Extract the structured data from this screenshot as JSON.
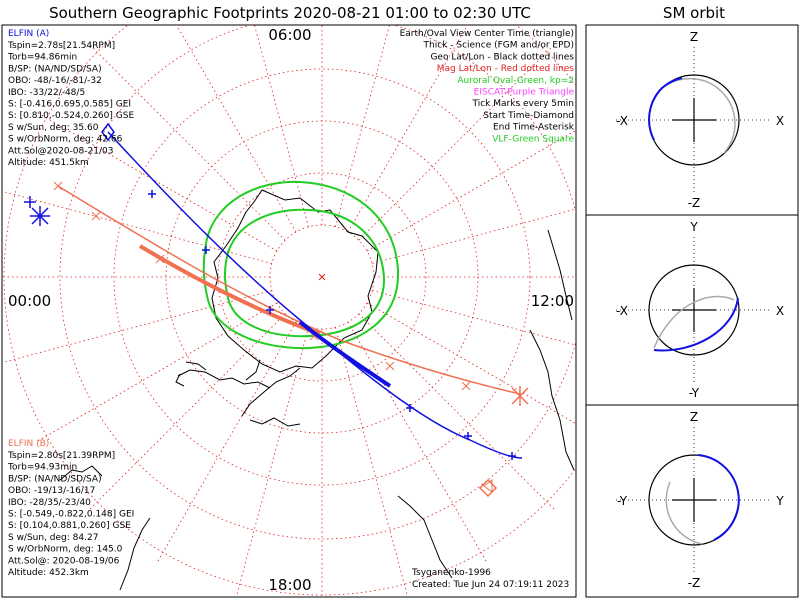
{
  "title": "Southern Geographic Footprints 2020-08-21 01:00 to 02:30 UTC",
  "sm_title": "SM orbit",
  "colors": {
    "elfin_a": "#1010e0",
    "elfin_b": "#f07050",
    "aurora": "#22cc22",
    "grid": "#e02020",
    "coast": "#000000",
    "eiscat": "#ff40ff",
    "vlf": "#22cc22"
  },
  "clock_labels": {
    "top": "06:00",
    "left": "00:00",
    "right": "12:00",
    "bottom": "18:00"
  },
  "elfin_a": {
    "name": "ELFIN (A)",
    "lines": [
      "Tspin=2.78s[21.54RPM]",
      "Torb=94.86min",
      "B/SP: (NA/ND/SD/SA)",
      "OBO: -48/-16/-81/-32",
      "IBO: -33/22/-48/5",
      "S: [-0.416,0.695,0.585] GEI",
      "S: [0.810,-0.524,0.260] GSE",
      "S w/Sun, deg: 35.60",
      "S w/OrbNorm, deg: 42.66",
      "Att.Sol@2020-08-21/03",
      "Altitude: 451.5km"
    ]
  },
  "elfin_b": {
    "name": "ELFIN (B)",
    "lines": [
      "Tspin=2.80s[21.39RPM]",
      "Torb=94.93min",
      "B/SP: (NA/ND/SD/SA)",
      "OBO: -19/13/-16/17",
      "IBO: -28/35/-23/40",
      "S: [-0.549,-0.822,0.148] GEI",
      "S: [0.104,0.881,0.260] GSE",
      "S w/Sun, deg: 84.27",
      "S w/OrbNorm, deg: 145.0",
      "Att.Sol@: 2020-08-19/06",
      "Altitude: 452.3km"
    ]
  },
  "legend": [
    {
      "text": "Earth/Oval View Center Time (triangle)",
      "color": "#000000"
    },
    {
      "text": "Thick - Science (FGM and/or EPD)",
      "color": "#000000"
    },
    {
      "text": "Geo Lat/Lon - Black dotted lines",
      "color": "#000000"
    },
    {
      "text": "Mag Lat/Lon - Red dotted lines",
      "color": "#e02020"
    },
    {
      "text": "Auroral Oval-Green, kp=2",
      "color": "#22cc22"
    },
    {
      "text": "EISCAT-Purple Triangle",
      "color": "#ff40ff"
    },
    {
      "text": "Tick Marks every 5min",
      "color": "#000000"
    },
    {
      "text": "Start Time-Diamond",
      "color": "#000000"
    },
    {
      "text": "End Time-Asterisk",
      "color": "#000000"
    },
    {
      "text": "VLF-Green Square",
      "color": "#22cc22"
    }
  ],
  "credit": "Tsyganenko-1996",
  "created": "Created: Tue Jun 24 07:19:11 2023",
  "sm_panels": [
    {
      "top": "Z",
      "bottom": "-Z",
      "left": "-X",
      "right": "X"
    },
    {
      "top": "Y",
      "bottom": "-Y",
      "left": "-X",
      "right": "X"
    },
    {
      "top": "Z",
      "bottom": "-Z",
      "left": "-Y",
      "right": "Y"
    }
  ],
  "chart_data": {
    "type": "polar-map",
    "projection": "southern polar stereographic",
    "time_range": [
      "2020-08-21 01:00 UTC",
      "2020-08-21 02:30 UTC"
    ],
    "mag_lat_circles_deg": [
      -90,
      -80,
      -70,
      -60,
      -50,
      -40
    ],
    "mag_lon_spokes_count": 24,
    "tick_interval_min": 5,
    "kp": 2,
    "series": [
      {
        "name": "ELFIN (A)",
        "color": "#1010e0",
        "x": [
          -6.8,
          -5.5,
          -4.1,
          -2.8,
          -1.6,
          -0.4,
          0.6,
          1.8,
          3.2,
          4.7,
          6.1,
          6.8
        ],
        "y": [
          6.2,
          4.8,
          3.5,
          2.2,
          0.9,
          -0.2,
          -1.1,
          -2.1,
          -3.1,
          -4.3,
          -5.0,
          -5.2
        ]
      },
      {
        "name": "ELFIN (B)",
        "color": "#f07050",
        "x": [
          -8.2,
          -7.0,
          -5.5,
          -4.0,
          -2.5,
          -1.2,
          0.0,
          1.5,
          3.0,
          4.6,
          6.0,
          7.2
        ],
        "y": [
          3.5,
          2.5,
          1.5,
          0.6,
          -0.3,
          -0.9,
          -1.5,
          -2.1,
          -2.7,
          -3.4,
          -3.9,
          -4.2
        ]
      }
    ]
  }
}
